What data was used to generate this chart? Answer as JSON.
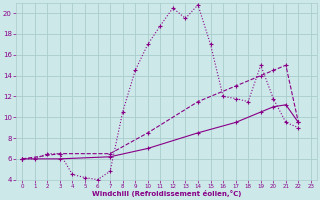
{
  "xlabel": "Windchill (Refroidissement éolien,°C)",
  "background_color": "#cce8e8",
  "grid_color": "#aacccc",
  "line_color": "#880088",
  "xlim": [
    -0.5,
    23.5
  ],
  "ylim": [
    4,
    21
  ],
  "xticks": [
    0,
    1,
    2,
    3,
    4,
    5,
    6,
    7,
    8,
    9,
    10,
    11,
    12,
    13,
    14,
    15,
    16,
    17,
    18,
    19,
    20,
    21,
    22,
    23
  ],
  "yticks": [
    4,
    6,
    8,
    10,
    12,
    14,
    16,
    18,
    20
  ],
  "series": [
    {
      "x": [
        0,
        1,
        2,
        3,
        4,
        5,
        6,
        7,
        8,
        9,
        10,
        11,
        12,
        13,
        14,
        15,
        16,
        17,
        18,
        19,
        20,
        21,
        22
      ],
      "y": [
        6.0,
        6.0,
        6.5,
        6.5,
        4.5,
        4.2,
        4.0,
        4.8,
        10.5,
        14.5,
        17.0,
        18.8,
        20.5,
        19.5,
        20.8,
        17.0,
        12.0,
        11.8,
        11.5,
        15.0,
        11.8,
        9.5,
        9.0
      ]
    },
    {
      "x": [
        0,
        3,
        7,
        10,
        14,
        17,
        19,
        20,
        21,
        22
      ],
      "y": [
        6.0,
        6.5,
        6.5,
        8.5,
        11.5,
        13.0,
        14.0,
        14.5,
        15.0,
        9.5
      ]
    },
    {
      "x": [
        0,
        3,
        7,
        10,
        14,
        17,
        19,
        20,
        21,
        22
      ],
      "y": [
        6.0,
        6.0,
        6.2,
        7.0,
        8.5,
        9.5,
        10.5,
        11.0,
        11.2,
        9.5
      ]
    }
  ]
}
